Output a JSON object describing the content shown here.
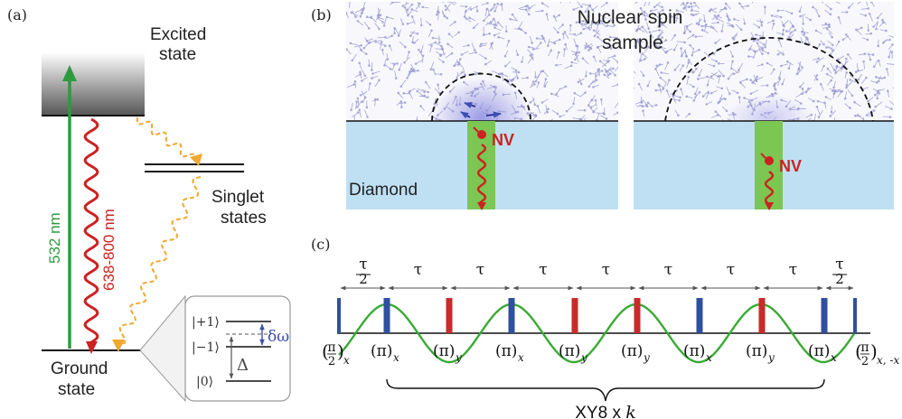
{
  "panels": {
    "a": "(a)",
    "b": "(b)",
    "c": "(c)"
  },
  "energy_diagram": {
    "excited_state": [
      "Excited",
      "state"
    ],
    "singlet_states": [
      "Singlet",
      "states"
    ],
    "ground_state": [
      "Ground",
      "state"
    ],
    "excitation_wavelength": "532 nm",
    "emission_wavelength": "638-800 nm",
    "inset": {
      "plus_one": "|+1⟩",
      "minus_one": "|−1⟩",
      "zero": "|0⟩",
      "delta_omega": "δω",
      "delta": "Δ"
    },
    "colors": {
      "excitation": "#2e9a3e",
      "emission": "#cc2222",
      "intersystem": "#f0a830",
      "inset_blue": "#3a4fb0"
    }
  },
  "nv_sketch": {
    "title": [
      "Nuclear spin",
      "sample"
    ],
    "diamond_label": "Diamond",
    "nv_label": "NV",
    "colors": {
      "diamond": "#bfe0f3",
      "nv_column": "#7cc653",
      "nv": "#cc2222",
      "spins": "#8f8fd0"
    }
  },
  "pulse_sequence": {
    "tau_symbol": "τ",
    "half_numerator": "τ",
    "half_denominator": "2",
    "interval_labels": [
      "τ/2",
      "τ",
      "τ",
      "τ",
      "τ",
      "τ",
      "τ",
      "τ",
      "τ/2"
    ],
    "pulses": [
      {
        "label": "(π/2)",
        "sub": "x",
        "color": "#2f4fa0"
      },
      {
        "label": "(π)",
        "sub": "x",
        "color": "#2f4fa0"
      },
      {
        "label": "(π)",
        "sub": "y",
        "color": "#c92a2a"
      },
      {
        "label": "(π)",
        "sub": "x",
        "color": "#2f4fa0"
      },
      {
        "label": "(π)",
        "sub": "y",
        "color": "#c92a2a"
      },
      {
        "label": "(π)",
        "sub": "y",
        "color": "#c92a2a"
      },
      {
        "label": "(π)",
        "sub": "x",
        "color": "#2f4fa0"
      },
      {
        "label": "(π)",
        "sub": "y",
        "color": "#c92a2a"
      },
      {
        "label": "(π)",
        "sub": "x",
        "color": "#2f4fa0"
      },
      {
        "label": "(π/2)",
        "sub": "x, -x",
        "color": "#2f4fa0"
      }
    ],
    "pi_symbol": "π",
    "two": "2",
    "xy8_label": "XY8 x ",
    "xy8_k": "k",
    "signal_color": "#3aaa35"
  }
}
